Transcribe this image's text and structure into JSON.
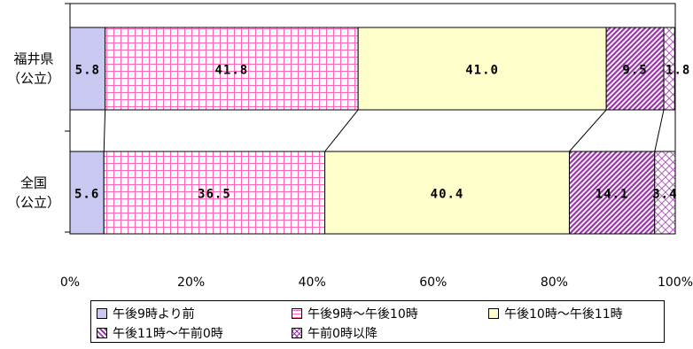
{
  "chart_data": {
    "type": "bar",
    "orientation": "horizontal",
    "stacked": true,
    "percent": true,
    "categories": [
      "福井県\n（公立）",
      "全国\n（公立）"
    ],
    "series": [
      {
        "name": "午後9時より前",
        "values": [
          5.8,
          5.6
        ],
        "labels": [
          "5.8",
          "5.6"
        ],
        "color": "#c8c8f0",
        "pattern": "solid"
      },
      {
        "name": "午後9時～午後10時",
        "values": [
          41.8,
          36.5
        ],
        "labels": [
          "41.8",
          "36.5"
        ],
        "color": "#ff88cc",
        "pattern": "grid"
      },
      {
        "name": "午後10時～午後11時",
        "values": [
          41.0,
          40.4
        ],
        "labels": [
          "41.0",
          "40.4"
        ],
        "color": "#ffffcc",
        "pattern": "solid"
      },
      {
        "name": "午後11時～午前0時",
        "values": [
          9.5,
          14.1
        ],
        "labels": [
          "9.5",
          "14.1"
        ],
        "color": "#9933aa",
        "pattern": "diagonal"
      },
      {
        "name": "午前0時以降",
        "values": [
          1.8,
          3.4
        ],
        "labels": [
          "1.8",
          "3.4"
        ],
        "color": "#9933aa",
        "pattern": "crosshatch"
      }
    ],
    "xlim": [
      0,
      100
    ],
    "x_ticks": [
      "0%",
      "20%",
      "40%",
      "60%",
      "80%",
      "100%"
    ],
    "legend_position": "bottom",
    "series_lines": true,
    "grid": false
  }
}
